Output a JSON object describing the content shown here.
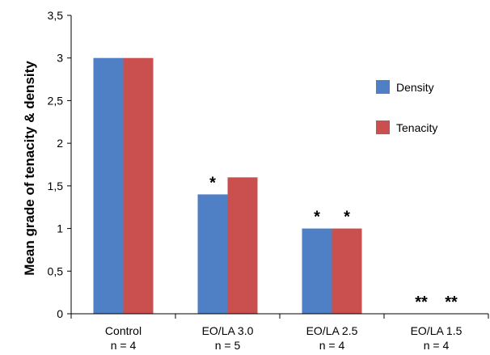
{
  "chart_data": {
    "type": "bar",
    "title": "",
    "ylabel": "Mean grade of tenacity & density",
    "xlabel": "",
    "ylim": [
      0,
      3.5
    ],
    "yticks": [
      "0",
      "0,5",
      "1",
      "1,5",
      "2",
      "2,5",
      "3",
      "3,5"
    ],
    "categories": [
      {
        "name": "Control",
        "n": "n = 4"
      },
      {
        "name": "EO/LA 3.0",
        "n": "n = 5"
      },
      {
        "name": "EO/LA 2.5",
        "n": "n = 4"
      },
      {
        "name": "EO/LA 1.5",
        "n": "n = 4"
      }
    ],
    "series": [
      {
        "name": "Density",
        "color": "#4f7fc4",
        "values": [
          3.0,
          1.4,
          1.0,
          0
        ],
        "annotations": [
          "",
          "*",
          "*",
          "**"
        ]
      },
      {
        "name": "Tenacity",
        "color": "#c9504f",
        "values": [
          3.0,
          1.6,
          1.0,
          0
        ],
        "annotations": [
          "",
          "",
          "*",
          "**"
        ]
      }
    ],
    "grid": false,
    "legend_position": "right"
  }
}
